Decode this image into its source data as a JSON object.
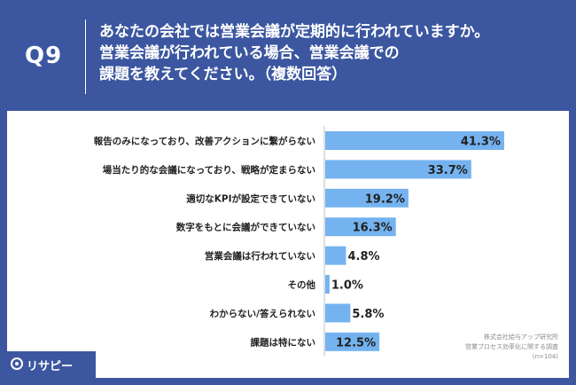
{
  "header": {
    "question_number": "Q9",
    "question_lines": [
      "あなたの会社では営業会議が定期的に行われていますか。",
      "営業会議が行われている場合、営業会議での",
      "課題を教えてください。（複数回答）"
    ]
  },
  "chart_data": {
    "type": "bar",
    "orientation": "horizontal",
    "categories": [
      "報告のみになっており、改善アクションに繋がらない",
      "場当たり的な会議になっており、戦略が定まらない",
      "適切なKPIが設定できていない",
      "数字をもとに会議ができていない",
      "営業会議は行われていない",
      "その他",
      "わからない/答えられない",
      "課題は特にない"
    ],
    "values": [
      41.3,
      33.7,
      19.2,
      16.3,
      4.8,
      1.0,
      5.8,
      12.5
    ],
    "value_labels": [
      "41.3%",
      "33.7%",
      "19.2%",
      "16.3%",
      "4.8%",
      "1.0%",
      "5.8%",
      "12.5%"
    ],
    "unit": "%",
    "xlim": [
      0,
      50
    ],
    "grid": false,
    "bar_color": "#74b3f0"
  },
  "footnote": {
    "lines": [
      "株式会社給与アップ研究所",
      "営業プロセス効率化に関する調査",
      "(n=104)"
    ]
  },
  "logo": {
    "text": "リサピー",
    "icon": "search-icon"
  },
  "colors": {
    "background": "#3c57a0",
    "panel": "#ffffff",
    "bar": "#74b3f0"
  }
}
